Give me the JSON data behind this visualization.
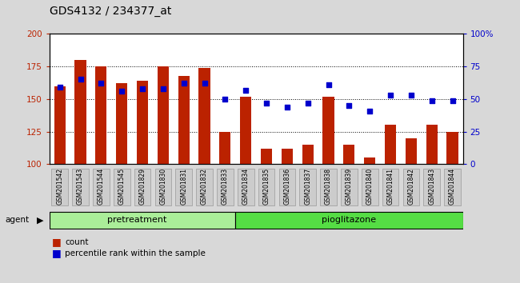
{
  "title": "GDS4132 / 234377_at",
  "categories": [
    "GSM201542",
    "GSM201543",
    "GSM201544",
    "GSM201545",
    "GSM201829",
    "GSM201830",
    "GSM201831",
    "GSM201832",
    "GSM201833",
    "GSM201834",
    "GSM201835",
    "GSM201836",
    "GSM201837",
    "GSM201838",
    "GSM201839",
    "GSM201840",
    "GSM201841",
    "GSM201842",
    "GSM201843",
    "GSM201844"
  ],
  "counts": [
    160,
    180,
    175,
    162,
    164,
    175,
    168,
    174,
    125,
    152,
    112,
    112,
    115,
    152,
    115,
    105,
    130,
    120,
    130,
    125
  ],
  "percentile_ranks": [
    59,
    65,
    62,
    56,
    58,
    58,
    62,
    62,
    50,
    57,
    47,
    44,
    47,
    61,
    45,
    41,
    53,
    53,
    49,
    49
  ],
  "bar_color": "#bb2200",
  "dot_color": "#0000cc",
  "ylim_left": [
    100,
    200
  ],
  "ylim_right": [
    0,
    100
  ],
  "yticks_left": [
    100,
    125,
    150,
    175,
    200
  ],
  "yticks_right": [
    0,
    25,
    50,
    75,
    100
  ],
  "ytick_labels_right": [
    "0",
    "25",
    "50",
    "75",
    "100%"
  ],
  "pretreatment_color": "#aaee99",
  "pioglitazone_color": "#55dd44",
  "group_label": "agent",
  "legend_items": [
    {
      "label": "count",
      "color": "#bb2200"
    },
    {
      "label": "percentile rank within the sample",
      "color": "#0000cc"
    }
  ],
  "background_color": "#d8d8d8",
  "plot_bg": "#ffffff",
  "title_fontsize": 10,
  "n_pretreatment": 9,
  "n_total": 20
}
